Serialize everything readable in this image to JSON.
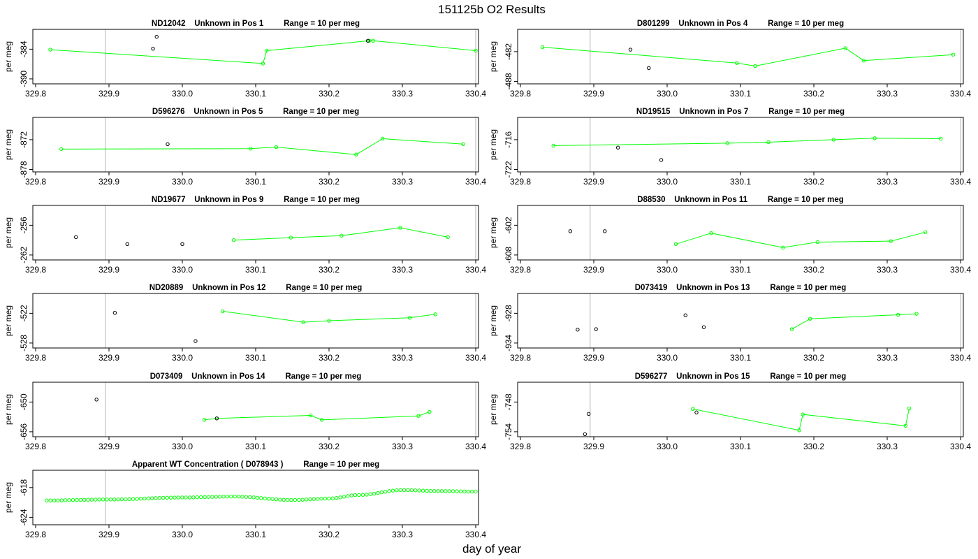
{
  "figure": {
    "title": "151125b  O2 Results",
    "xlabel": "day of year"
  },
  "colors": {
    "line": "#00ff00",
    "sample_point": "#000000",
    "frame": "#000000",
    "vline": "#c0c0c0"
  },
  "chart_data": [
    {
      "type": "scatter",
      "title": "ND12042    Unknown in Pos 1         Range = 10 per meg",
      "ylabel": "per meg",
      "xlim": [
        329.8,
        330.4
      ],
      "ylim": [
        -391,
        -380
      ],
      "xticks": [
        "329.8",
        "329.9",
        "330.0",
        "330.1",
        "330.2",
        "330.3",
        "330.4"
      ],
      "yticks": [
        "-384",
        "-390"
      ],
      "vlines": [
        329.895,
        330.4
      ],
      "series": [
        {
          "kind": "line",
          "x": [
            329.82,
            330.11,
            330.115,
            330.255,
            330.26,
            330.4
          ],
          "y": [
            -384.1,
            -386.9,
            -384.3,
            -382.3,
            -382.3,
            -384.3
          ]
        },
        {
          "kind": "points",
          "x": [
            329.965,
            329.96,
            330.253
          ],
          "y": [
            -381.5,
            -383.9,
            -382.3
          ]
        }
      ]
    },
    {
      "type": "scatter",
      "title": "D801299    Unknown in Pos 4         Range = 10 per meg",
      "ylabel": "per meg",
      "xlim": [
        329.8,
        330.4
      ],
      "ylim": [
        -488.5,
        -477.5
      ],
      "xticks": [
        "329.8",
        "329.9",
        "330.0",
        "330.1",
        "330.2",
        "330.3",
        "330.4"
      ],
      "yticks": [
        "-482",
        "-488"
      ],
      "vlines": [
        329.895,
        330.4
      ],
      "series": [
        {
          "kind": "line",
          "x": [
            329.83,
            330.095,
            330.12,
            330.243,
            330.268,
            330.39
          ],
          "y": [
            -481.1,
            -484.3,
            -484.9,
            -481.3,
            -483.8,
            -482.6
          ]
        },
        {
          "kind": "points",
          "x": [
            329.95,
            329.975
          ],
          "y": [
            -481.6,
            -485.3
          ]
        }
      ]
    },
    {
      "type": "scatter",
      "title": "D596276    Unknown in Pos 5         Range = 10 per meg",
      "ylabel": "per meg",
      "xlim": [
        329.8,
        330.4
      ],
      "ylim": [
        -878.5,
        -867.5
      ],
      "xticks": [
        "329.8",
        "329.9",
        "330.0",
        "330.1",
        "330.2",
        "330.3",
        "330.4"
      ],
      "yticks": [
        "-872",
        "-878"
      ],
      "vlines": [
        329.895,
        330.4
      ],
      "series": [
        {
          "kind": "line",
          "x": [
            329.835,
            330.093,
            330.128,
            330.237,
            330.273,
            330.383
          ],
          "y": [
            -873.9,
            -873.8,
            -873.5,
            -875.0,
            -871.8,
            -872.9
          ]
        },
        {
          "kind": "points",
          "x": [
            329.98
          ],
          "y": [
            -872.9
          ]
        }
      ]
    },
    {
      "type": "scatter",
      "title": "ND19515    Unknown in Pos 7         Range = 10 per meg",
      "ylabel": "per meg",
      "xlim": [
        329.8,
        330.4
      ],
      "ylim": [
        -722.5,
        -711.5
      ],
      "xticks": [
        "329.8",
        "329.9",
        "330.0",
        "330.1",
        "330.2",
        "330.3",
        "330.4"
      ],
      "yticks": [
        "-716",
        "-722"
      ],
      "vlines": [
        329.895,
        330.4
      ],
      "series": [
        {
          "kind": "line",
          "x": [
            329.845,
            330.082,
            330.138,
            330.227,
            330.283,
            330.373
          ],
          "y": [
            -717.2,
            -716.7,
            -716.5,
            -716.0,
            -715.7,
            -715.8
          ]
        },
        {
          "kind": "points",
          "x": [
            329.933,
            329.992
          ],
          "y": [
            -717.6,
            -720.1
          ]
        }
      ]
    },
    {
      "type": "scatter",
      "title": "ND19677    Unknown in Pos 9         Range = 10 per meg",
      "ylabel": "per meg",
      "xlim": [
        329.8,
        330.4
      ],
      "ylim": [
        -263,
        -252
      ],
      "xticks": [
        "329.8",
        "329.9",
        "330.0",
        "330.1",
        "330.2",
        "330.3",
        "330.4"
      ],
      "yticks": [
        "-256",
        "-262"
      ],
      "vlines": [
        329.895,
        330.4
      ],
      "series": [
        {
          "kind": "line",
          "x": [
            330.07,
            330.148,
            330.217,
            330.297,
            330.362
          ],
          "y": [
            -259.0,
            -258.5,
            -258.1,
            -256.5,
            -258.4
          ]
        },
        {
          "kind": "points",
          "x": [
            329.855,
            329.925,
            330.0
          ],
          "y": [
            -258.4,
            -259.8,
            -259.8
          ]
        }
      ]
    },
    {
      "type": "scatter",
      "title": "D88530    Unknown in Pos 11         Range = 10 per meg",
      "ylabel": "per meg",
      "xlim": [
        329.8,
        330.4
      ],
      "ylim": [
        -609,
        -598
      ],
      "xticks": [
        "329.8",
        "329.9",
        "330.0",
        "330.1",
        "330.2",
        "330.3",
        "330.4"
      ],
      "yticks": [
        "-602",
        "-608"
      ],
      "vlines": [
        329.895,
        330.4
      ],
      "series": [
        {
          "kind": "line",
          "x": [
            330.012,
            330.06,
            330.158,
            330.205,
            330.305,
            330.352
          ],
          "y": [
            -605.8,
            -603.6,
            -606.5,
            -605.4,
            -605.2,
            -603.4
          ]
        },
        {
          "kind": "points",
          "x": [
            329.868,
            329.915
          ],
          "y": [
            -603.2,
            -603.2
          ]
        }
      ]
    },
    {
      "type": "scatter",
      "title": "ND20889    Unknown in Pos 12         Range = 10 per meg",
      "ylabel": "per meg",
      "xlim": [
        329.8,
        330.4
      ],
      "ylim": [
        -529,
        -518
      ],
      "xticks": [
        "329.8",
        "329.9",
        "330.0",
        "330.1",
        "330.2",
        "330.3",
        "330.4"
      ],
      "yticks": [
        "-522",
        "-528"
      ],
      "vlines": [
        329.895,
        330.4
      ],
      "series": [
        {
          "kind": "line",
          "x": [
            330.055,
            330.165,
            330.2,
            330.31,
            330.345
          ],
          "y": [
            -521.6,
            -523.8,
            -523.5,
            -522.9,
            -522.2
          ]
        },
        {
          "kind": "points",
          "x": [
            329.908,
            330.018
          ],
          "y": [
            -521.9,
            -527.6
          ]
        }
      ]
    },
    {
      "type": "scatter",
      "title": "D073419    Unknown in Pos 13         Range = 10 per meg",
      "ylabel": "per meg",
      "xlim": [
        329.8,
        330.4
      ],
      "ylim": [
        -935,
        -924
      ],
      "xticks": [
        "329.8",
        "329.9",
        "330.0",
        "330.1",
        "330.2",
        "330.3",
        "330.4"
      ],
      "yticks": [
        "-928",
        "-934"
      ],
      "vlines": [
        329.895,
        330.4
      ],
      "series": [
        {
          "kind": "line",
          "x": [
            330.17,
            330.195,
            330.315,
            330.34
          ],
          "y": [
            -931.2,
            -929.1,
            -928.3,
            -928.1
          ]
        },
        {
          "kind": "points",
          "x": [
            329.878,
            329.903,
            330.025,
            330.05
          ],
          "y": [
            -931.3,
            -931.2,
            -928.4,
            -930.8
          ]
        }
      ]
    },
    {
      "type": "scatter",
      "title": "D073409    Unknown in Pos 14         Range = 10 per meg",
      "ylabel": "per meg",
      "xlim": [
        329.8,
        330.4
      ],
      "ylim": [
        -657,
        -646
      ],
      "xticks": [
        "329.8",
        "329.9",
        "330.0",
        "330.1",
        "330.2",
        "330.3",
        "330.4"
      ],
      "yticks": [
        "-650",
        "-656"
      ],
      "vlines": [
        329.895,
        330.4
      ],
      "series": [
        {
          "kind": "line",
          "x": [
            330.03,
            330.047,
            330.175,
            330.19,
            330.322,
            330.337
          ],
          "y": [
            -653.6,
            -653.3,
            -652.7,
            -653.6,
            -652.8,
            -652.0
          ]
        },
        {
          "kind": "points",
          "x": [
            329.883,
            330.047
          ],
          "y": [
            -649.5,
            -653.3
          ]
        }
      ]
    },
    {
      "type": "scatter",
      "title": "D596277    Unknown in Pos 15         Range = 10 per meg",
      "ylabel": "per meg",
      "xlim": [
        329.8,
        330.4
      ],
      "ylim": [
        -755,
        -744
      ],
      "xticks": [
        "329.8",
        "329.9",
        "330.0",
        "330.1",
        "330.2",
        "330.3",
        "330.4"
      ],
      "yticks": [
        "-748",
        "-754"
      ],
      "vlines": [
        329.895,
        330.4
      ],
      "series": [
        {
          "kind": "line",
          "x": [
            330.035,
            330.18,
            330.185,
            330.325,
            330.33
          ],
          "y": [
            -749.4,
            -753.7,
            -750.5,
            -752.8,
            -749.3
          ]
        },
        {
          "kind": "points",
          "x": [
            329.893,
            329.888,
            330.04
          ],
          "y": [
            -750.4,
            -754.5,
            -750.1
          ]
        }
      ]
    },
    {
      "type": "scatter",
      "title": "Apparent WT Concentration ( D078943 )         Range = 10 per meg",
      "ylabel": "per meg",
      "xlim": [
        329.8,
        330.4
      ],
      "ylim": [
        -625.5,
        -614.5
      ],
      "xticks": [
        "329.8",
        "329.9",
        "330.0",
        "330.1",
        "330.2",
        "330.3",
        "330.4"
      ],
      "yticks": [
        "-618",
        "-624"
      ],
      "vlines": [
        329.895
      ],
      "series": [
        {
          "kind": "dense",
          "x_start": 329.815,
          "x_end": 330.4,
          "n": 115,
          "x_anchors": [
            329.815,
            329.9,
            330.0,
            330.07,
            330.15,
            330.2,
            330.24,
            330.3,
            330.35,
            330.4
          ],
          "y_anchors": [
            -620.6,
            -620.4,
            -620.0,
            -619.8,
            -620.5,
            -620.2,
            -619.5,
            -618.5,
            -618.7,
            -618.8
          ]
        }
      ]
    }
  ]
}
